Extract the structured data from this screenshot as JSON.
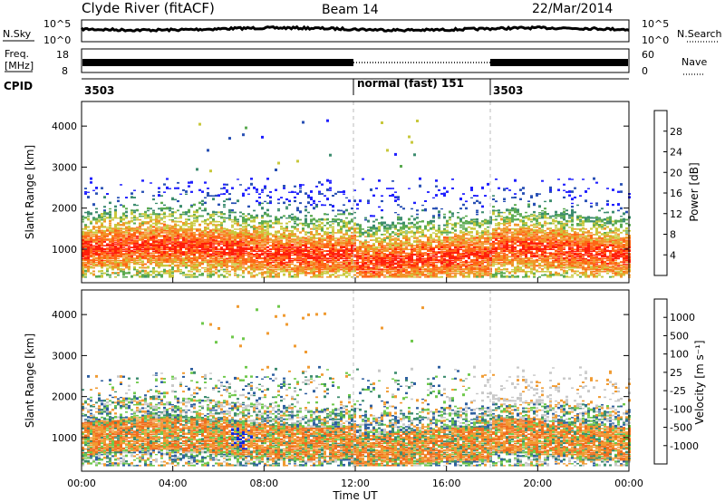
{
  "header": {
    "station": "Clyde River (fitACF)",
    "beam": "Beam 14",
    "date": "22/Mar/2014"
  },
  "noise_panel": {
    "left_label": "N.Sky",
    "right_label": "N.Search",
    "left_ticks": [
      "10^5",
      "10^0"
    ],
    "right_ticks": [
      "10^5",
      "10^0"
    ]
  },
  "freq_panel": {
    "left_label_1": "Freq.",
    "left_label_2": "[MHz]",
    "right_label": "Nave",
    "left_ticks": [
      "18",
      "8"
    ],
    "right_ticks": [
      "60",
      "0"
    ]
  },
  "cpid_panel": {
    "label": "CPID",
    "segments": [
      {
        "start": 0,
        "end": 12,
        "text": "3503"
      },
      {
        "start": 12,
        "end": 18,
        "text": "normal (fast) 151"
      },
      {
        "start": 18,
        "end": 24,
        "text": "3503"
      }
    ]
  },
  "chart_data": [
    {
      "type": "heatmap",
      "quantity": "power",
      "ylabel": "Slant Range [km]",
      "ylim": [
        180,
        4600
      ],
      "yticks": [
        1000,
        2000,
        3000,
        4000
      ],
      "xlim": [
        0,
        24
      ],
      "cbar_label": "Power [dB]",
      "cbar_ticks": [
        "4",
        "8",
        "12",
        "16",
        "20",
        "24",
        "28"
      ],
      "cbar_colors": [
        "#1f1fff",
        "#2850b4",
        "#3c8c6e",
        "#5aaa50",
        "#c8c83c",
        "#f09628",
        "#ff6414",
        "#ff1e0a"
      ]
    },
    {
      "type": "heatmap",
      "quantity": "velocity",
      "ylabel": "Slant Range [km]",
      "ylim": [
        180,
        4600
      ],
      "yticks": [
        1000,
        2000,
        3000,
        4000
      ],
      "xlim": [
        0,
        24
      ],
      "cbar_label": "Velocity [m s⁻¹]",
      "cbar_ticks": [
        "1000",
        "500",
        "100",
        "25",
        "-25",
        "-100",
        "-500",
        "-1000"
      ],
      "cbar_colors": [
        "#1428dc",
        "#2e5fa0",
        "#3c8c6e",
        "#6ec84a",
        "#c8c8c8",
        "#f09b32",
        "#f06e1e",
        "#ff5014",
        "#ff0a0a"
      ]
    }
  ],
  "time_axis": {
    "label": "Time UT",
    "ticks": [
      "00:00",
      "04:00",
      "08:00",
      "12:00",
      "16:00",
      "20:00",
      "00:00"
    ],
    "tick_hours": [
      0,
      4,
      8,
      12,
      16,
      20,
      24
    ]
  }
}
